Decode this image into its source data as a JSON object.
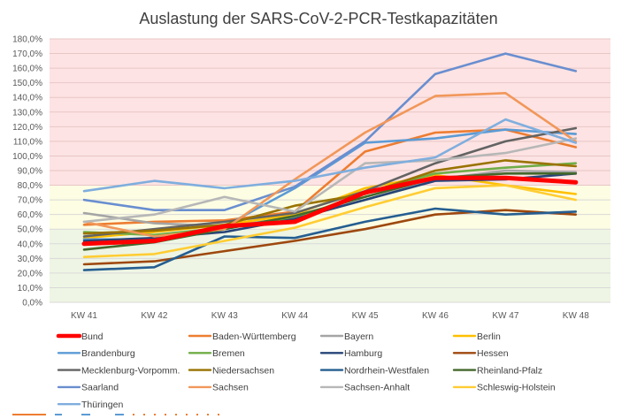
{
  "chart_data": {
    "type": "line",
    "title": "Auslastung der SARS-CoV-2-PCR-Testkapazitäten",
    "xlabel": "",
    "ylabel": "",
    "categories": [
      "KW 41",
      "KW 42",
      "KW 43",
      "KW 44",
      "KW 45",
      "KW 46",
      "KW 47",
      "KW 48"
    ],
    "ylim": [
      0,
      180
    ],
    "ytick_step": 10,
    "ytick_labels": [
      "0,0%",
      "10,0%",
      "20,0%",
      "30,0%",
      "40,0%",
      "50,0%",
      "60,0%",
      "70,0%",
      "80,0%",
      "90,0%",
      "100,0%",
      "110,0%",
      "120,0%",
      "130,0%",
      "140,0%",
      "150,0%",
      "160,0%",
      "170,0%",
      "180,0%"
    ],
    "grid": true,
    "legend_position": "bottom",
    "background_bands": [
      {
        "from": 0,
        "to": 50,
        "color": "#eef5e4"
      },
      {
        "from": 50,
        "to": 80,
        "color": "#fdfde3"
      },
      {
        "from": 80,
        "to": 180,
        "color": "#fde3e3"
      }
    ],
    "series": [
      {
        "name": "Bund",
        "color": "#ff0000",
        "bold": true,
        "values": [
          40,
          42,
          52,
          55,
          75,
          85,
          85,
          82
        ]
      },
      {
        "name": "Baden-Württemberg",
        "color": "#ed7d31",
        "values": [
          53,
          55,
          56,
          62,
          103,
          116,
          118,
          106
        ]
      },
      {
        "name": "Bayern",
        "color": "#a5a5a5",
        "values": [
          61,
          54,
          52,
          58,
          70,
          84,
          90,
          89
        ]
      },
      {
        "name": "Berlin",
        "color": "#ffc000",
        "values": [
          44,
          48,
          53,
          60,
          78,
          87,
          80,
          74
        ]
      },
      {
        "name": "Brandenburg",
        "color": "#5b9bd5",
        "values": [
          43,
          43,
          52,
          78,
          109,
          112,
          118,
          115
        ]
      },
      {
        "name": "Bremen",
        "color": "#70ad47",
        "values": [
          48,
          46,
          51,
          57,
          75,
          88,
          92,
          95
        ]
      },
      {
        "name": "Hamburg",
        "color": "#264478",
        "values": [
          42,
          44,
          48,
          57,
          70,
          83,
          84,
          88
        ]
      },
      {
        "name": "Hessen",
        "color": "#9e480e",
        "values": [
          26,
          28,
          35,
          42,
          50,
          60,
          63,
          60
        ]
      },
      {
        "name": "Mecklenburg-Vorpomm.",
        "color": "#636363",
        "values": [
          45,
          50,
          55,
          61,
          76,
          95,
          110,
          119
        ]
      },
      {
        "name": "Niedersachsen",
        "color": "#997300",
        "values": [
          47,
          49,
          53,
          66,
          74,
          90,
          97,
          93
        ]
      },
      {
        "name": "Nordrhein-Westfalen",
        "color": "#255e91",
        "values": [
          22,
          24,
          45,
          44,
          55,
          64,
          60,
          62
        ]
      },
      {
        "name": "Rheinland-Pfalz",
        "color": "#43682b",
        "values": [
          36,
          41,
          50,
          59,
          72,
          85,
          88,
          88
        ]
      },
      {
        "name": "Saarland",
        "color": "#698ed0",
        "values": [
          70,
          63,
          63,
          79,
          110,
          156,
          170,
          158
        ]
      },
      {
        "name": "Sachsen",
        "color": "#f1975a",
        "values": [
          55,
          45,
          50,
          84,
          116,
          141,
          143,
          110
        ]
      },
      {
        "name": "Sachsen-Anhalt",
        "color": "#b7b7b7",
        "values": [
          55,
          60,
          72,
          62,
          95,
          97,
          102,
          112
        ]
      },
      {
        "name": "Schleswig-Holstein",
        "color": "#ffcd33",
        "values": [
          31,
          33,
          42,
          51,
          65,
          78,
          80,
          70
        ]
      },
      {
        "name": "Thüringen",
        "color": "#7faede",
        "values": [
          76,
          83,
          78,
          83,
          92,
          99,
          125,
          109
        ]
      }
    ]
  },
  "footer_cropped": {
    "visible": true
  }
}
